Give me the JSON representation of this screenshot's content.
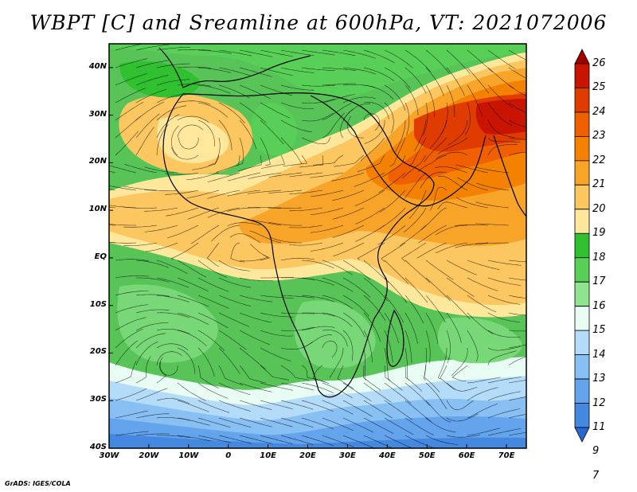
{
  "title": "WBPT [C] and Sreamline at 600hPa, VT: 2021072006",
  "credit": "GrADS: IGES/COLA",
  "map": {
    "lon_range": [
      -30,
      75
    ],
    "lat_range": [
      -40,
      45
    ],
    "lat_ticks": [
      {
        "label": "40N",
        "lat": 40
      },
      {
        "label": "30N",
        "lat": 30
      },
      {
        "label": "20N",
        "lat": 20
      },
      {
        "label": "10N",
        "lat": 10
      },
      {
        "label": "EQ",
        "lat": 0
      },
      {
        "label": "10S",
        "lat": -10
      },
      {
        "label": "20S",
        "lat": -20
      },
      {
        "label": "30S",
        "lat": -30
      },
      {
        "label": "40S",
        "lat": -40
      }
    ],
    "lon_ticks": [
      {
        "label": "30W",
        "lon": -30
      },
      {
        "label": "20W",
        "lon": -20
      },
      {
        "label": "10W",
        "lon": -10
      },
      {
        "label": "0",
        "lon": 0
      },
      {
        "label": "10E",
        "lon": 10
      },
      {
        "label": "20E",
        "lon": 20
      },
      {
        "label": "30E",
        "lon": 30
      },
      {
        "label": "40E",
        "lon": 40
      },
      {
        "label": "50E",
        "lon": 50
      },
      {
        "label": "60E",
        "lon": 60
      },
      {
        "label": "70E",
        "lon": 70
      }
    ]
  },
  "colorbar": {
    "levels": [
      "26",
      "25",
      "24",
      "23",
      "22",
      "21",
      "20",
      "19",
      "18",
      "17",
      "16",
      "15",
      "14",
      "13",
      "12",
      "11",
      "9",
      "7"
    ],
    "colors": [
      "#a00000",
      "#c81400",
      "#e03c00",
      "#f06000",
      "#f48200",
      "#f8a428",
      "#fcc660",
      "#ffe89c",
      "#30c030",
      "#58d058",
      "#90e490",
      "#e8fcf4",
      "#b4dcf8",
      "#88c0f4",
      "#64a4ec",
      "#4488e0",
      "#2868d0"
    ]
  }
}
